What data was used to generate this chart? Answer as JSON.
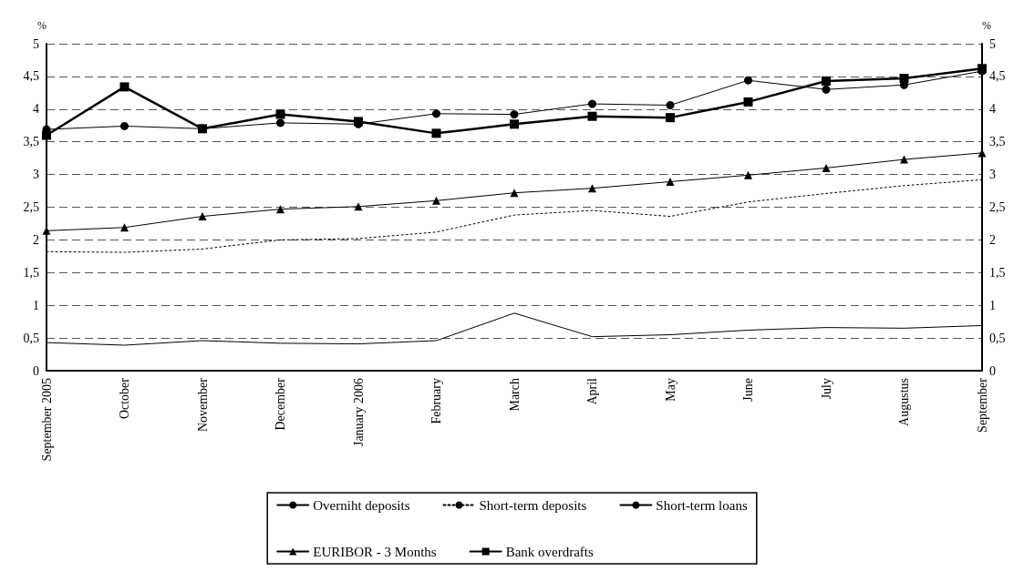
{
  "chart_data": {
    "type": "line",
    "ylabel": "%",
    "y2label": "%",
    "categories": [
      "September 2005",
      "October",
      "November",
      "December",
      "January 2006",
      "February",
      "March",
      "April",
      "May",
      "June",
      "July",
      "Augustus",
      "September"
    ],
    "ylim": [
      0,
      5
    ],
    "yticks": [
      0,
      {
        "value": 0.5,
        "label": "0,5"
      },
      1,
      {
        "value": 1.5,
        "label": "1,5"
      },
      2,
      {
        "value": 2.5,
        "label": "2,5"
      },
      3,
      {
        "value": 3.5,
        "label": "3,5"
      },
      4,
      {
        "value": 4.5,
        "label": "4,5"
      },
      5
    ],
    "y2lim": [
      0,
      5
    ],
    "y2ticks": [
      0,
      {
        "value": 0.5,
        "label": "0,5"
      },
      1,
      {
        "value": 1.5,
        "label": "1,5"
      },
      2,
      {
        "value": 2.5,
        "label": "2,5"
      },
      3,
      {
        "value": 3.5,
        "label": "3,5"
      },
      4,
      {
        "value": 4.5,
        "label": "4,5"
      },
      5
    ],
    "grid": "y",
    "legend": "bottom",
    "series": [
      {
        "name": "Overniht deposits",
        "color": "#000000",
        "marker": "none",
        "line_style": "solid",
        "values": [
          0.43,
          0.39,
          0.46,
          0.42,
          0.41,
          0.46,
          0.88,
          0.52,
          0.55,
          0.62,
          0.66,
          0.65,
          0.69
        ]
      },
      {
        "name": "Short-term deposits",
        "color": "#000000",
        "marker": "none",
        "line_style": "dotted",
        "values": [
          1.82,
          1.81,
          1.86,
          2.0,
          2.02,
          2.12,
          2.38,
          2.45,
          2.36,
          2.58,
          2.71,
          2.83,
          2.92
        ]
      },
      {
        "name": "Short-term loans",
        "color": "#000000",
        "marker": "circle",
        "line_style": "solid",
        "values": [
          3.69,
          3.74,
          3.7,
          3.79,
          3.77,
          3.93,
          3.92,
          4.08,
          4.06,
          4.44,
          4.3,
          4.37,
          4.58
        ]
      },
      {
        "name": "EURIBOR - 3 Months",
        "color": "#000000",
        "marker": "triangle",
        "line_style": "solid",
        "values": [
          2.14,
          2.19,
          2.36,
          2.47,
          2.51,
          2.6,
          2.72,
          2.79,
          2.89,
          2.99,
          3.1,
          3.23,
          3.33
        ]
      },
      {
        "name": "Bank overdrafts",
        "color": "#000000",
        "marker": "square",
        "line_style": "solid",
        "values": [
          3.6,
          4.34,
          3.7,
          3.92,
          3.81,
          3.63,
          3.77,
          3.89,
          3.87,
          4.11,
          4.43,
          4.47,
          4.62
        ]
      }
    ]
  }
}
